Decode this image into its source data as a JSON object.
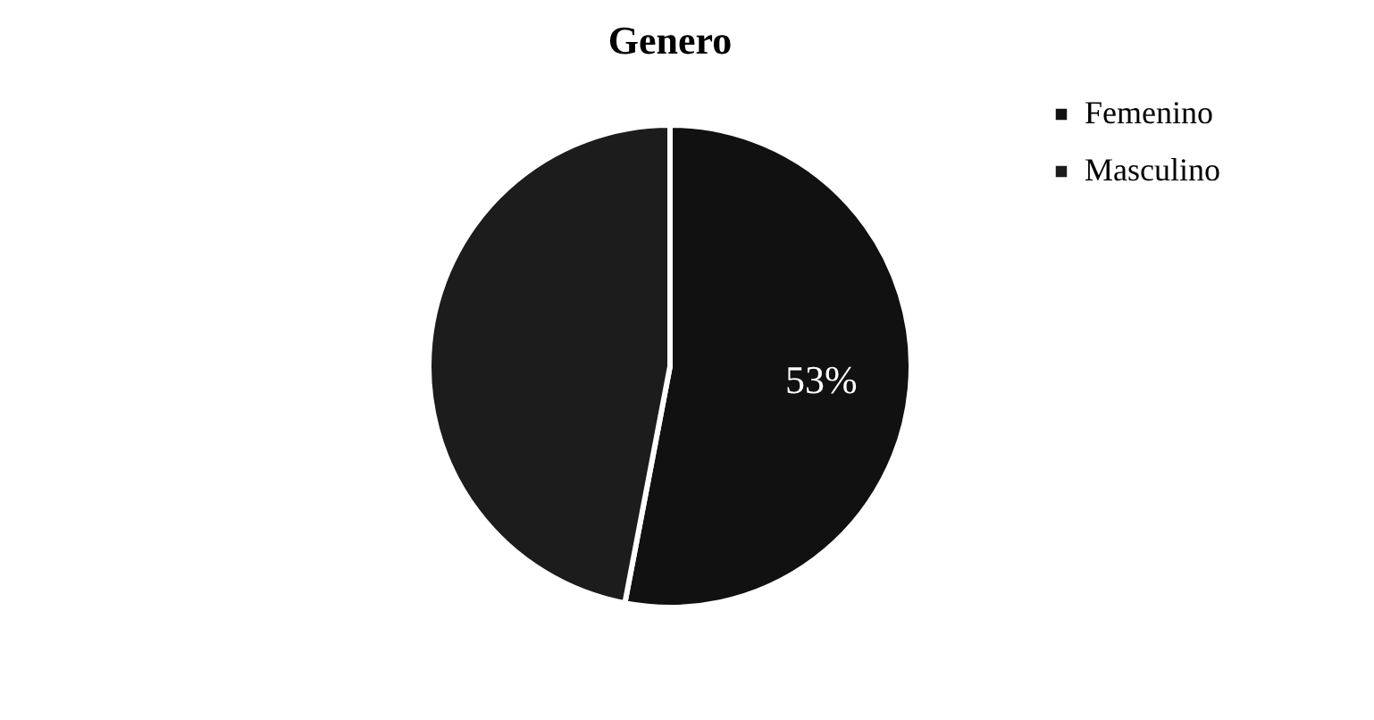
{
  "chart_data": {
    "type": "pie",
    "title": "Genero",
    "categories": [
      "Femenino",
      "Masculino"
    ],
    "values": [
      53,
      47
    ],
    "colors": [
      "#111111",
      "#1c1c1c"
    ],
    "value_labels": [
      "53%",
      null
    ],
    "legend": "right"
  }
}
